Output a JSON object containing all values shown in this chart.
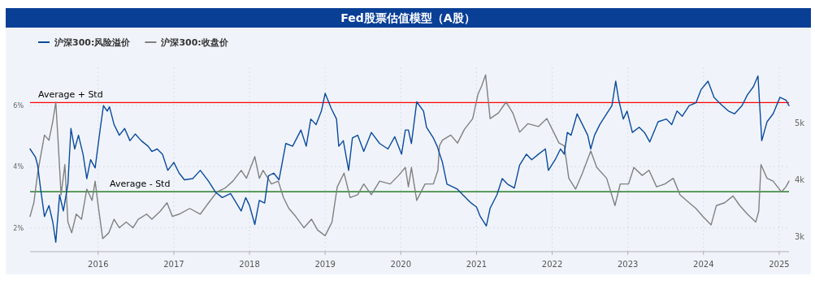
{
  "chart_data": {
    "type": "line",
    "title": "Fed股票估值模型（A股）",
    "legend": "top left",
    "grid": true,
    "line_style": "solid",
    "marker": "none",
    "xlim": [
      2015.1,
      2025.13
    ],
    "xticks": [
      2016,
      2017,
      2018,
      2019,
      2020,
      2021,
      2022,
      2023,
      2024,
      2025
    ],
    "ylim": [
      1.22,
      7.25
    ],
    "yticks": [
      {
        "value": 2,
        "label": "2%"
      },
      {
        "value": 4,
        "label": "4%"
      },
      {
        "value": 6,
        "label": "6%"
      }
    ],
    "y2lim": [
      2730,
      5970
    ],
    "y2ticks": [
      {
        "value": 3000,
        "label": "3k"
      },
      {
        "value": 4000,
        "label": "4k"
      },
      {
        "value": 5000,
        "label": "5k"
      }
    ],
    "ref_lines": [
      {
        "axis": "y",
        "value": 6.1,
        "label": "Average + Std",
        "color": "#ff0000",
        "line_style": "solid"
      },
      {
        "axis": "y",
        "value": 3.18,
        "label": "Average - Std",
        "color": "#006400",
        "line_style": "solid"
      }
    ],
    "series": [
      {
        "name": "沪深300:风险溢价",
        "color": "#0a4a9c",
        "axis": "y",
        "x": [
          2015.1,
          2015.17,
          2015.2,
          2015.24,
          2015.29,
          2015.35,
          2015.4,
          2015.44,
          2015.49,
          2015.54,
          2015.6,
          2015.64,
          2015.69,
          2015.74,
          2015.8,
          2015.85,
          2015.9,
          2015.96,
          2016.03,
          2016.07,
          2016.12,
          2016.15,
          2016.21,
          2016.28,
          2016.35,
          2016.42,
          2016.49,
          2016.57,
          2016.66,
          2016.71,
          2016.78,
          2016.85,
          2016.92,
          2017.0,
          2017.07,
          2017.14,
          2017.25,
          2017.35,
          2017.46,
          2017.55,
          2017.64,
          2017.75,
          2017.89,
          2017.95,
          2018.0,
          2018.07,
          2018.13,
          2018.2,
          2018.25,
          2018.32,
          2018.39,
          2018.48,
          2018.57,
          2018.68,
          2018.75,
          2018.81,
          2018.88,
          2018.95,
          2019.0,
          2019.08,
          2019.15,
          2019.18,
          2019.24,
          2019.31,
          2019.36,
          2019.43,
          2019.51,
          2019.61,
          2019.72,
          2019.83,
          2019.92,
          2020.01,
          2020.06,
          2020.1,
          2020.14,
          2020.21,
          2020.3,
          2020.34,
          2020.43,
          2020.48,
          2020.55,
          2020.61,
          2020.68,
          2020.75,
          2020.82,
          2020.93,
          2021.0,
          2021.05,
          2021.13,
          2021.18,
          2021.27,
          2021.34,
          2021.41,
          2021.5,
          2021.57,
          2021.66,
          2021.73,
          2021.82,
          2021.91,
          2021.95,
          2022.04,
          2022.11,
          2022.16,
          2022.2,
          2022.25,
          2022.33,
          2022.4,
          2022.47,
          2022.51,
          2022.56,
          2022.63,
          2022.72,
          2022.79,
          2022.84,
          2022.88,
          2022.94,
          2022.99,
          2023.06,
          2023.15,
          2023.22,
          2023.29,
          2023.4,
          2023.51,
          2023.58,
          2023.65,
          2023.72,
          2023.81,
          2023.9,
          2023.97,
          2024.06,
          2024.14,
          2024.23,
          2024.33,
          2024.41,
          2024.51,
          2024.58,
          2024.66,
          2024.72,
          2024.75,
          2024.77,
          2024.84,
          2024.92,
          2025.01,
          2025.09,
          2025.13
        ],
        "values": [
          4.58,
          4.32,
          4.05,
          3.26,
          2.37,
          2.73,
          2.19,
          1.53,
          3.08,
          2.55,
          3.43,
          5.25,
          4.58,
          5.03,
          4.41,
          3.61,
          4.23,
          3.96,
          5.29,
          6.0,
          5.82,
          5.96,
          5.38,
          5.03,
          5.25,
          4.85,
          5.07,
          4.85,
          4.67,
          4.5,
          4.58,
          4.41,
          3.88,
          4.14,
          3.79,
          3.57,
          3.61,
          3.88,
          3.52,
          3.17,
          2.99,
          3.12,
          2.55,
          2.99,
          2.73,
          2.11,
          2.9,
          2.81,
          3.7,
          3.79,
          3.57,
          4.76,
          4.67,
          5.2,
          4.67,
          5.56,
          5.38,
          5.82,
          6.4,
          5.91,
          5.56,
          4.67,
          4.85,
          3.88,
          4.94,
          5.03,
          4.5,
          5.12,
          4.76,
          4.58,
          4.98,
          4.41,
          5.2,
          5.2,
          4.76,
          6.12,
          5.82,
          5.29,
          4.94,
          4.67,
          4.14,
          3.43,
          3.35,
          3.26,
          3.08,
          2.81,
          2.68,
          2.37,
          2.06,
          2.64,
          3.08,
          3.61,
          3.43,
          3.3,
          4.05,
          4.41,
          4.23,
          4.41,
          4.58,
          3.88,
          4.23,
          4.58,
          4.41,
          5.12,
          5.03,
          5.73,
          5.38,
          5.03,
          4.58,
          5.03,
          5.38,
          5.73,
          6.0,
          6.8,
          6.18,
          5.56,
          5.82,
          5.12,
          5.29,
          5.12,
          4.81,
          5.47,
          5.56,
          5.38,
          5.82,
          5.65,
          6.0,
          6.09,
          6.53,
          6.8,
          6.27,
          6.04,
          5.82,
          5.73,
          6.0,
          6.35,
          6.62,
          6.97,
          5.73,
          4.85,
          5.47,
          5.73,
          6.27,
          6.18,
          6.0
        ]
      },
      {
        "name": "沪深300:收盘价",
        "color": "#808080",
        "axis": "y2",
        "x": [
          2015.1,
          2015.15,
          2015.2,
          2015.29,
          2015.35,
          2015.4,
          2015.44,
          2015.47,
          2015.51,
          2015.56,
          2015.6,
          2015.65,
          2015.71,
          2015.78,
          2015.85,
          2015.92,
          2015.96,
          2016.0,
          2016.06,
          2016.14,
          2016.21,
          2016.28,
          2016.37,
          2016.46,
          2016.53,
          2016.64,
          2016.71,
          2016.82,
          2016.91,
          2016.98,
          2017.07,
          2017.21,
          2017.35,
          2017.46,
          2017.57,
          2017.68,
          2017.78,
          2017.89,
          2017.96,
          2018.07,
          2018.13,
          2018.18,
          2018.29,
          2018.38,
          2018.45,
          2018.52,
          2018.61,
          2018.72,
          2018.82,
          2018.9,
          2019.0,
          2019.09,
          2019.16,
          2019.25,
          2019.33,
          2019.43,
          2019.51,
          2019.61,
          2019.72,
          2019.86,
          2019.97,
          2020.06,
          2020.1,
          2020.14,
          2020.21,
          2020.32,
          2020.43,
          2020.49,
          2020.51,
          2020.55,
          2020.66,
          2020.75,
          2020.84,
          2020.95,
          2021.02,
          2021.07,
          2021.12,
          2021.18,
          2021.29,
          2021.39,
          2021.48,
          2021.57,
          2021.68,
          2021.82,
          2021.93,
          2022.02,
          2022.09,
          2022.16,
          2022.22,
          2022.31,
          2022.4,
          2022.51,
          2022.59,
          2022.72,
          2022.83,
          2022.9,
          2023.01,
          2023.08,
          2023.19,
          2023.28,
          2023.38,
          2023.49,
          2023.6,
          2023.69,
          2023.81,
          2023.9,
          2023.99,
          2024.1,
          2024.17,
          2024.28,
          2024.39,
          2024.48,
          2024.58,
          2024.69,
          2024.73,
          2024.76,
          2024.84,
          2024.92,
          2025.03,
          2025.09,
          2025.13
        ],
        "values": [
          3350,
          3590,
          4110,
          4780,
          4690,
          5020,
          5360,
          4690,
          3730,
          4260,
          3250,
          3060,
          3390,
          3300,
          3830,
          3630,
          3970,
          3540,
          2960,
          3060,
          3300,
          3150,
          3250,
          3150,
          3300,
          3390,
          3300,
          3440,
          3590,
          3350,
          3390,
          3490,
          3390,
          3590,
          3780,
          3850,
          3970,
          4160,
          4020,
          4400,
          4020,
          4160,
          3920,
          3970,
          3680,
          3490,
          3350,
          3150,
          3300,
          3110,
          3010,
          3250,
          3870,
          4110,
          3680,
          3730,
          3920,
          3730,
          3970,
          3920,
          4070,
          4210,
          3870,
          4210,
          3630,
          3920,
          3920,
          4160,
          4590,
          4690,
          4780,
          4640,
          4880,
          5070,
          5500,
          5650,
          5840,
          5070,
          5170,
          5360,
          5170,
          4830,
          4980,
          4930,
          5070,
          4830,
          4640,
          4590,
          4020,
          3830,
          4110,
          4500,
          4210,
          4020,
          3540,
          3920,
          3920,
          4210,
          4070,
          4160,
          3870,
          3920,
          4020,
          3730,
          3590,
          3490,
          3350,
          3200,
          3540,
          3590,
          3710,
          3540,
          3390,
          3250,
          3440,
          4260,
          4020,
          3970,
          3780,
          3870,
          3970
        ]
      }
    ]
  }
}
